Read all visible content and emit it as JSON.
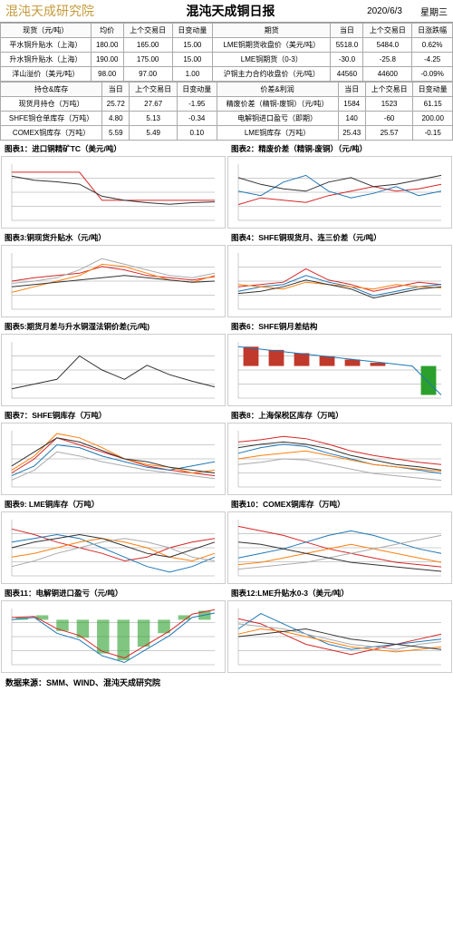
{
  "header": {
    "logo": "混沌天成研究院",
    "title": "混沌天成铜日报",
    "date": "2020/6/3",
    "weekday": "星期三"
  },
  "table1": {
    "headers": [
      "现货（元/吨）",
      "均价",
      "上个交易日",
      "日变动量",
      "期货",
      "当日",
      "上个交易日",
      "日涨跌幅"
    ],
    "rows": [
      [
        "平水铜升贴水（上海）",
        "180.00",
        "165.00",
        "15.00",
        "LME铜期货收盘价（美元/吨）",
        "5518.0",
        "5484.0",
        "0.62%"
      ],
      [
        "升水铜升贴水（上海）",
        "190.00",
        "175.00",
        "15.00",
        "LME铜期货（0-3）",
        "-30.0",
        "-25.8",
        "-4.25"
      ],
      [
        "洋山溢价（美元/吨）",
        "98.00",
        "97.00",
        "1.00",
        "沪铜主力合约收盘价（元/吨）",
        "44560",
        "44600",
        "-0.09%"
      ]
    ]
  },
  "table2": {
    "headers": [
      "持仓&库存",
      "当日",
      "上个交易日",
      "日变动量",
      "价差&利润",
      "当日",
      "上个交易日",
      "日变动量"
    ],
    "rows": [
      [
        "现货月持仓（万吨）",
        "25.72",
        "27.67",
        "-1.95",
        "精废价差（精铜-废铜）（元/吨）",
        "1584",
        "1523",
        "61.15"
      ],
      [
        "SHFE铜仓单库存（万吨）",
        "4.80",
        "5.13",
        "-0.34",
        "电解铜进口盈亏（即期）",
        "140",
        "-60",
        "200.00"
      ],
      [
        "COMEX铜库存（万吨）",
        "5.59",
        "5.49",
        "0.10",
        "LME铜库存（万吨）",
        "25.43",
        "25.57",
        "-0.15"
      ]
    ]
  },
  "charts": [
    {
      "title": "图表1：进口铜精矿TC（美元/吨）",
      "type": "line",
      "colors": [
        "#d62728",
        "#333"
      ],
      "ylim": [
        30,
        100
      ],
      "series": [
        [
          90,
          90,
          90,
          90,
          55,
          55,
          55,
          55,
          55,
          55
        ],
        [
          85,
          80,
          78,
          75,
          60,
          55,
          52,
          50,
          52,
          53
        ]
      ]
    },
    {
      "title": "图表2：精废价差（精铜-废铜）（元/吨）",
      "type": "line",
      "colors": [
        "#d62728",
        "#1f77b4",
        "#333"
      ],
      "ylim": [
        500,
        3000
      ],
      "series": [
        [
          1200,
          1500,
          1400,
          1300,
          1600,
          1800,
          2000,
          1800,
          1900,
          2100
        ],
        [
          1800,
          1600,
          2200,
          2500,
          1800,
          1500,
          1700,
          2000,
          1600,
          1800
        ],
        [
          2400,
          2100,
          1900,
          1800,
          2200,
          2400,
          2000,
          2100,
          2300,
          2500
        ]
      ]
    },
    {
      "title": "图表3:铜现货升贴水（元/吨）",
      "type": "line",
      "colors": [
        "#d62728",
        "#ff7f0e",
        "#aaa",
        "#333"
      ],
      "ylim": [
        -200,
        300
      ],
      "series": [
        [
          50,
          80,
          100,
          120,
          180,
          150,
          100,
          80,
          60,
          90
        ],
        [
          -50,
          0,
          50,
          100,
          200,
          180,
          120,
          60,
          40,
          100
        ],
        [
          30,
          50,
          80,
          150,
          250,
          200,
          150,
          100,
          80,
          120
        ],
        [
          0,
          20,
          40,
          60,
          80,
          100,
          80,
          60,
          40,
          50
        ]
      ]
    },
    {
      "title": "图表4：SHFE铜现货月、连三价差（元/吨）",
      "type": "line",
      "colors": [
        "#d62728",
        "#1f77b4",
        "#ff7f0e",
        "#333"
      ],
      "ylim": [
        -1000,
        1500
      ],
      "series": [
        [
          0,
          100,
          200,
          800,
          300,
          100,
          -200,
          0,
          200,
          100
        ],
        [
          -200,
          0,
          100,
          500,
          200,
          0,
          -400,
          -200,
          0,
          100
        ],
        [
          100,
          0,
          -100,
          200,
          100,
          0,
          -100,
          100,
          0,
          -50
        ],
        [
          -300,
          -200,
          0,
          300,
          100,
          -100,
          -500,
          -300,
          -100,
          0
        ]
      ]
    },
    {
      "title": "图表5:期货月差与升水铜湿法铜价差(元/吨)",
      "type": "line",
      "colors": [
        "#333"
      ],
      "ylim": [
        0,
        600
      ],
      "series": [
        [
          100,
          150,
          200,
          450,
          300,
          200,
          350,
          250,
          180,
          120
        ]
      ]
    },
    {
      "title": "图表6：SHFE铜月差结构",
      "type": "bar",
      "colors": [
        "#c0392b",
        "#2ca02c"
      ],
      "ylim": [
        -200,
        150
      ],
      "values": [
        120,
        100,
        80,
        60,
        40,
        20,
        0,
        -180
      ],
      "line": [
        120,
        100,
        80,
        60,
        40,
        20,
        0,
        -180
      ]
    },
    {
      "title": "图表7：SHFE铜库存（万吨）",
      "type": "line",
      "colors": [
        "#d62728",
        "#1f77b4",
        "#ff7f0e",
        "#aaa",
        "#333"
      ],
      "ylim": [
        0,
        40
      ],
      "series": [
        [
          10,
          20,
          35,
          30,
          25,
          20,
          15,
          12,
          10,
          8
        ],
        [
          8,
          15,
          30,
          28,
          22,
          18,
          14,
          12,
          15,
          18
        ],
        [
          12,
          22,
          38,
          35,
          28,
          20,
          16,
          14,
          10,
          12
        ],
        [
          5,
          12,
          25,
          22,
          18,
          15,
          12,
          10,
          8,
          6
        ],
        [
          15,
          25,
          35,
          32,
          26,
          20,
          18,
          14,
          12,
          10
        ]
      ]
    },
    {
      "title": "图表8：上海保税区库存（万吨）",
      "type": "line",
      "colors": [
        "#d62728",
        "#1f77b4",
        "#ff7f0e",
        "#aaa",
        "#333"
      ],
      "ylim": [
        20,
        70
      ],
      "series": [
        [
          60,
          62,
          65,
          63,
          58,
          52,
          48,
          45,
          42,
          40
        ],
        [
          50,
          55,
          58,
          56,
          50,
          45,
          40,
          38,
          35,
          32
        ],
        [
          45,
          48,
          50,
          52,
          48,
          44,
          40,
          38,
          36,
          34
        ],
        [
          40,
          42,
          45,
          44,
          40,
          36,
          32,
          30,
          28,
          26
        ],
        [
          55,
          58,
          60,
          58,
          54,
          48,
          44,
          40,
          38,
          35
        ]
      ]
    },
    {
      "title": "图表9: LME铜库存（万吨）",
      "type": "line",
      "colors": [
        "#d62728",
        "#1f77b4",
        "#ff7f0e",
        "#aaa",
        "#333"
      ],
      "ylim": [
        10,
        40
      ],
      "series": [
        [
          35,
          32,
          28,
          25,
          22,
          18,
          20,
          25,
          28,
          30
        ],
        [
          28,
          30,
          32,
          30,
          25,
          20,
          15,
          12,
          15,
          20
        ],
        [
          20,
          22,
          25,
          28,
          30,
          28,
          25,
          20,
          18,
          22
        ],
        [
          15,
          18,
          22,
          25,
          28,
          30,
          28,
          25,
          20,
          18
        ],
        [
          25,
          28,
          30,
          32,
          30,
          26,
          22,
          20,
          24,
          28
        ]
      ]
    },
    {
      "title": "图表10：COMEX铜库存（万吨）",
      "type": "line",
      "colors": [
        "#d62728",
        "#1f77b4",
        "#ff7f0e",
        "#aaa",
        "#333"
      ],
      "ylim": [
        0,
        25
      ],
      "series": [
        [
          22,
          20,
          18,
          15,
          12,
          10,
          8,
          6,
          5,
          4
        ],
        [
          8,
          10,
          12,
          15,
          18,
          20,
          18,
          15,
          12,
          10
        ],
        [
          5,
          6,
          8,
          10,
          12,
          14,
          12,
          10,
          8,
          6
        ],
        [
          3,
          4,
          5,
          6,
          8,
          10,
          12,
          14,
          16,
          18
        ],
        [
          15,
          14,
          12,
          10,
          8,
          6,
          5,
          4,
          3,
          2
        ]
      ]
    },
    {
      "title": "图表11：电解铜进口盈亏（元/吨）",
      "type": "bar-line",
      "colors": [
        "#2ca02c",
        "#d62728",
        "#1f77b4"
      ],
      "ylim": [
        -2000,
        500
      ],
      "bars": [
        100,
        200,
        -500,
        -800,
        -1500,
        -1800,
        -1200,
        -600,
        200,
        400
      ],
      "lines": [
        [
          100,
          150,
          -400,
          -700,
          -1400,
          -1700,
          -1100,
          -500,
          250,
          450
        ],
        [
          0,
          100,
          -600,
          -900,
          -1600,
          -1900,
          -1300,
          -700,
          100,
          300
        ]
      ]
    },
    {
      "title": "图表12:LME升贴水0-3（美元/吨）",
      "type": "line",
      "colors": [
        "#d62728",
        "#1f77b4",
        "#ff7f0e",
        "#aaa",
        "#333"
      ],
      "ylim": [
        -50,
        60
      ],
      "series": [
        [
          40,
          30,
          10,
          -10,
          -20,
          -30,
          -20,
          -10,
          0,
          10
        ],
        [
          20,
          50,
          30,
          10,
          -10,
          -20,
          -15,
          -10,
          -5,
          0
        ],
        [
          10,
          20,
          15,
          5,
          -5,
          -15,
          -20,
          -25,
          -20,
          -15
        ],
        [
          30,
          25,
          20,
          10,
          0,
          -10,
          -15,
          -20,
          -10,
          -5
        ],
        [
          5,
          10,
          15,
          20,
          10,
          0,
          -5,
          -10,
          -15,
          -20
        ]
      ]
    }
  ],
  "source": "数据来源：SMM、WIND、混沌天成研究院"
}
